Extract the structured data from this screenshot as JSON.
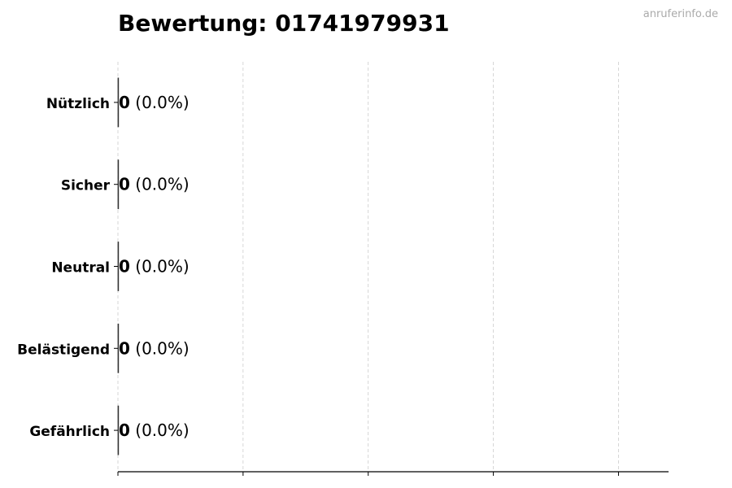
{
  "chart_data": {
    "type": "bar",
    "orientation": "horizontal",
    "title": "Bewertung: 01741979931",
    "categories": [
      "Nützlich",
      "Sicher",
      "Neutral",
      "Belästigend",
      "Gefährlich"
    ],
    "values": [
      0,
      0,
      0,
      0,
      0
    ],
    "value_labels": [
      "0",
      "0",
      "0",
      "0",
      "0"
    ],
    "percent_labels": [
      "(0.0%)",
      "(0.0%)",
      "(0.0%)",
      "(0.0%)",
      "(0.0%)"
    ],
    "xlim": [
      0,
      4.4
    ],
    "grid": "x dashed",
    "xlabel": "",
    "ylabel": ""
  },
  "watermark": "anruferinfo.de",
  "colors": {
    "bar_edge": "#333333",
    "grid": "#cccccc",
    "watermark": "#aaaaaa"
  }
}
